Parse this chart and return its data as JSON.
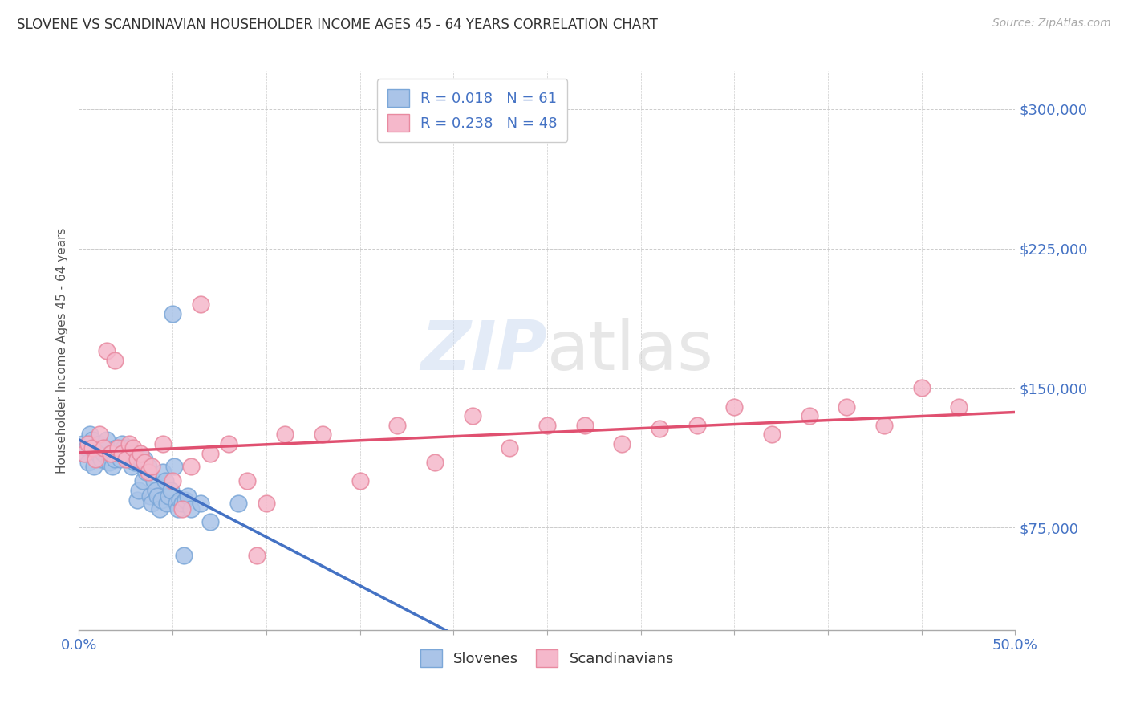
{
  "title": "SLOVENE VS SCANDINAVIAN HOUSEHOLDER INCOME AGES 45 - 64 YEARS CORRELATION CHART",
  "source": "Source: ZipAtlas.com",
  "ylabel": "Householder Income Ages 45 - 64 years",
  "watermark": "ZIPatlas",
  "xlim": [
    0,
    50
  ],
  "ylim": [
    20000,
    320000
  ],
  "yticks": [
    75000,
    150000,
    225000,
    300000
  ],
  "ytick_labels": [
    "$75,000",
    "$150,000",
    "$225,000",
    "$300,000"
  ],
  "axis_label_color": "#4472c4",
  "title_color": "#333333",
  "blue_color": "#aac4e8",
  "pink_color": "#f5b8cb",
  "blue_edge_color": "#7ba7d8",
  "pink_edge_color": "#e88aa0",
  "blue_line_color": "#4472c4",
  "pink_line_color": "#e05070",
  "blue_x": [
    0.2,
    0.3,
    0.4,
    0.5,
    0.6,
    0.7,
    0.8,
    0.9,
    1.0,
    1.1,
    1.2,
    1.3,
    1.4,
    1.5,
    1.6,
    1.7,
    1.8,
    1.9,
    2.0,
    2.1,
    2.2,
    2.3,
    2.4,
    2.5,
    2.6,
    2.7,
    2.8,
    2.9,
    3.0,
    3.1,
    3.2,
    3.3,
    3.4,
    3.5,
    3.6,
    3.7,
    3.8,
    3.9,
    4.0,
    4.1,
    4.2,
    4.3,
    4.4,
    4.5,
    4.6,
    4.7,
    4.8,
    4.9,
    5.0,
    5.1,
    5.2,
    5.3,
    5.4,
    5.5,
    5.6,
    5.7,
    5.8,
    6.0,
    6.5,
    7.0,
    8.5
  ],
  "blue_y": [
    120000,
    115000,
    118000,
    110000,
    125000,
    122000,
    108000,
    118000,
    115000,
    120000,
    112000,
    115000,
    118000,
    122000,
    110000,
    115000,
    108000,
    112000,
    118000,
    115000,
    112000,
    120000,
    118000,
    115000,
    112000,
    118000,
    108000,
    115000,
    110000,
    90000,
    95000,
    112000,
    100000,
    112000,
    105000,
    108000,
    92000,
    88000,
    100000,
    95000,
    92000,
    85000,
    90000,
    105000,
    100000,
    88000,
    92000,
    95000,
    190000,
    108000,
    88000,
    85000,
    90000,
    88000,
    60000,
    90000,
    92000,
    85000,
    88000,
    78000,
    88000
  ],
  "pink_x": [
    0.3,
    0.5,
    0.7,
    0.9,
    1.1,
    1.3,
    1.5,
    1.7,
    1.9,
    2.1,
    2.3,
    2.5,
    2.7,
    2.9,
    3.1,
    3.3,
    3.5,
    3.7,
    3.9,
    4.5,
    5.0,
    5.5,
    6.0,
    7.0,
    8.0,
    9.0,
    10.0,
    11.0,
    13.0,
    15.0,
    17.0,
    19.0,
    21.0,
    23.0,
    25.0,
    27.0,
    29.0,
    31.0,
    33.0,
    35.0,
    37.0,
    39.0,
    41.0,
    43.0,
    45.0,
    47.0,
    6.5,
    9.5
  ],
  "pink_y": [
    115000,
    120000,
    118000,
    112000,
    125000,
    118000,
    170000,
    115000,
    165000,
    118000,
    115000,
    112000,
    120000,
    118000,
    112000,
    115000,
    110000,
    105000,
    108000,
    120000,
    100000,
    85000,
    108000,
    115000,
    120000,
    100000,
    88000,
    125000,
    125000,
    100000,
    130000,
    110000,
    135000,
    118000,
    130000,
    130000,
    120000,
    128000,
    130000,
    140000,
    125000,
    135000,
    140000,
    130000,
    150000,
    140000,
    195000,
    60000
  ]
}
